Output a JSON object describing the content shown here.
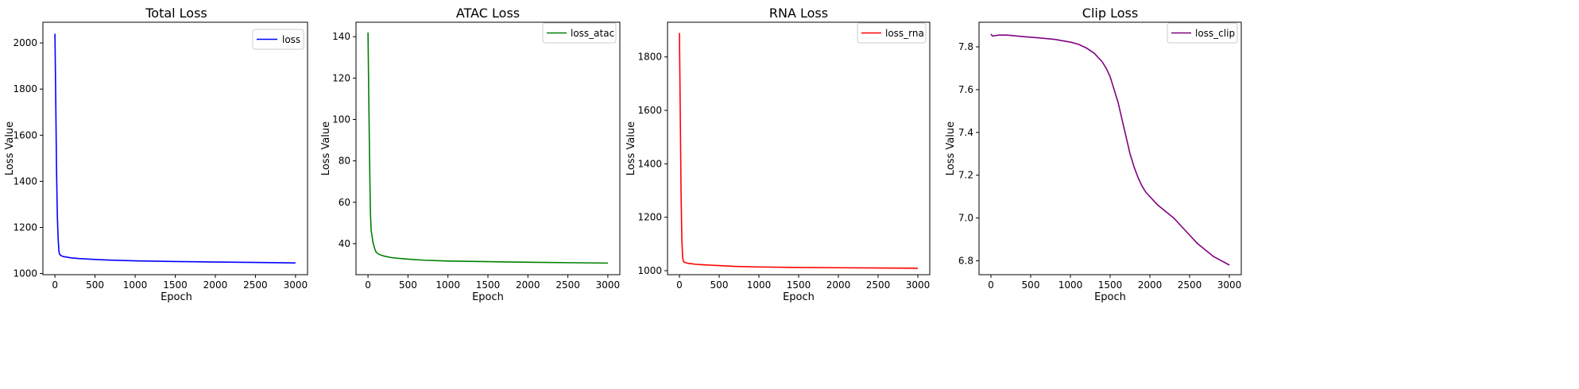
{
  "charts": [
    {
      "title": "Total Loss",
      "xlabel": "Epoch",
      "ylabel": "Loss Value",
      "legend_label": "loss",
      "color": "#0000ff",
      "xlim": [
        -150,
        3150
      ],
      "ylim": [
        995,
        2090
      ],
      "xticks": [
        0,
        500,
        1000,
        1500,
        2000,
        2500,
        3000
      ],
      "yticks": [
        1000,
        1200,
        1400,
        1600,
        1800,
        2000
      ]
    },
    {
      "title": "ATAC Loss",
      "xlabel": "Epoch",
      "ylabel": "Loss Value",
      "legend_label": "loss_atac",
      "color": "#008000",
      "xlim": [
        -150,
        3150
      ],
      "ylim": [
        25,
        147
      ],
      "xticks": [
        0,
        500,
        1000,
        1500,
        2000,
        2500,
        3000
      ],
      "yticks": [
        40,
        60,
        80,
        100,
        120,
        140
      ]
    },
    {
      "title": "RNA Loss",
      "xlabel": "Epoch",
      "ylabel": "Loss Value",
      "legend_label": "loss_rna",
      "color": "#ff0000",
      "xlim": [
        -150,
        3150
      ],
      "ylim": [
        985,
        1930
      ],
      "xticks": [
        0,
        500,
        1000,
        1500,
        2000,
        2500,
        3000
      ],
      "yticks": [
        1000,
        1200,
        1400,
        1600,
        1800
      ]
    },
    {
      "title": "Clip Loss",
      "xlabel": "Epoch",
      "ylabel": "Loss Value",
      "legend_label": "loss_clip",
      "color": "#800080",
      "xlim": [
        -150,
        3150
      ],
      "ylim": [
        6.735,
        7.915
      ],
      "xticks": [
        0,
        500,
        1000,
        1500,
        2000,
        2500,
        3000
      ],
      "yticks": [
        6.8,
        7.0,
        7.2,
        7.4,
        7.6,
        7.8
      ]
    }
  ],
  "chart_data": [
    {
      "type": "line",
      "title": "Total Loss",
      "xlabel": "Epoch",
      "ylabel": "Loss Value",
      "legend": "top-right",
      "grid": false,
      "xlim": [
        -150,
        3150
      ],
      "ylim": [
        995,
        2090
      ],
      "series": [
        {
          "name": "loss",
          "x": [
            0,
            10,
            20,
            30,
            40,
            50,
            60,
            80,
            100,
            150,
            200,
            300,
            500,
            700,
            1000,
            1500,
            2000,
            2500,
            3000
          ],
          "y": [
            2040,
            1750,
            1450,
            1250,
            1150,
            1095,
            1082,
            1077,
            1074,
            1071,
            1068,
            1065,
            1061,
            1058,
            1055,
            1052,
            1050,
            1048,
            1046
          ]
        }
      ]
    },
    {
      "type": "line",
      "title": "ATAC Loss",
      "xlabel": "Epoch",
      "ylabel": "Loss Value",
      "legend": "top-right",
      "grid": false,
      "xlim": [
        -150,
        3150
      ],
      "ylim": [
        25,
        147
      ],
      "series": [
        {
          "name": "loss_atac",
          "x": [
            0,
            10,
            20,
            30,
            40,
            50,
            60,
            80,
            100,
            130,
            160,
            200,
            300,
            500,
            700,
            1000,
            1500,
            2000,
            2500,
            3000
          ],
          "y": [
            142,
            110,
            80,
            55,
            46,
            44,
            41,
            38,
            36,
            35,
            34.5,
            34,
            33.2,
            32.5,
            32,
            31.6,
            31.3,
            31,
            30.8,
            30.6
          ]
        }
      ]
    },
    {
      "type": "line",
      "title": "RNA Loss",
      "xlabel": "Epoch",
      "ylabel": "Loss Value",
      "legend": "top-right",
      "grid": false,
      "xlim": [
        -150,
        3150
      ],
      "ylim": [
        985,
        1930
      ],
      "series": [
        {
          "name": "loss_rna",
          "x": [
            0,
            10,
            20,
            30,
            40,
            50,
            60,
            80,
            100,
            150,
            200,
            300,
            500,
            700,
            1000,
            1500,
            2000,
            2500,
            3000
          ],
          "y": [
            1890,
            1600,
            1300,
            1120,
            1050,
            1035,
            1032,
            1030,
            1028,
            1026,
            1024,
            1022,
            1019,
            1016,
            1014,
            1012,
            1011,
            1010,
            1009
          ]
        }
      ]
    },
    {
      "type": "line",
      "title": "Clip Loss",
      "xlabel": "Epoch",
      "ylabel": "Loss Value",
      "legend": "top-right",
      "grid": false,
      "xlim": [
        -150,
        3150
      ],
      "ylim": [
        6.735,
        7.915
      ],
      "series": [
        {
          "name": "loss_clip",
          "x": [
            0,
            20,
            50,
            100,
            200,
            400,
            600,
            800,
            1000,
            1100,
            1200,
            1300,
            1400,
            1450,
            1500,
            1550,
            1600,
            1650,
            1700,
            1750,
            1800,
            1850,
            1900,
            1950,
            2000,
            2100,
            2200,
            2300,
            2400,
            2500,
            2600,
            2700,
            2800,
            2900,
            3000
          ],
          "y": [
            7.86,
            7.85,
            7.852,
            7.855,
            7.855,
            7.848,
            7.842,
            7.835,
            7.822,
            7.812,
            7.795,
            7.77,
            7.73,
            7.7,
            7.66,
            7.6,
            7.54,
            7.46,
            7.38,
            7.3,
            7.24,
            7.19,
            7.15,
            7.12,
            7.1,
            7.06,
            7.03,
            7.0,
            6.96,
            6.92,
            6.88,
            6.85,
            6.82,
            6.8,
            6.78
          ]
        }
      ]
    }
  ]
}
